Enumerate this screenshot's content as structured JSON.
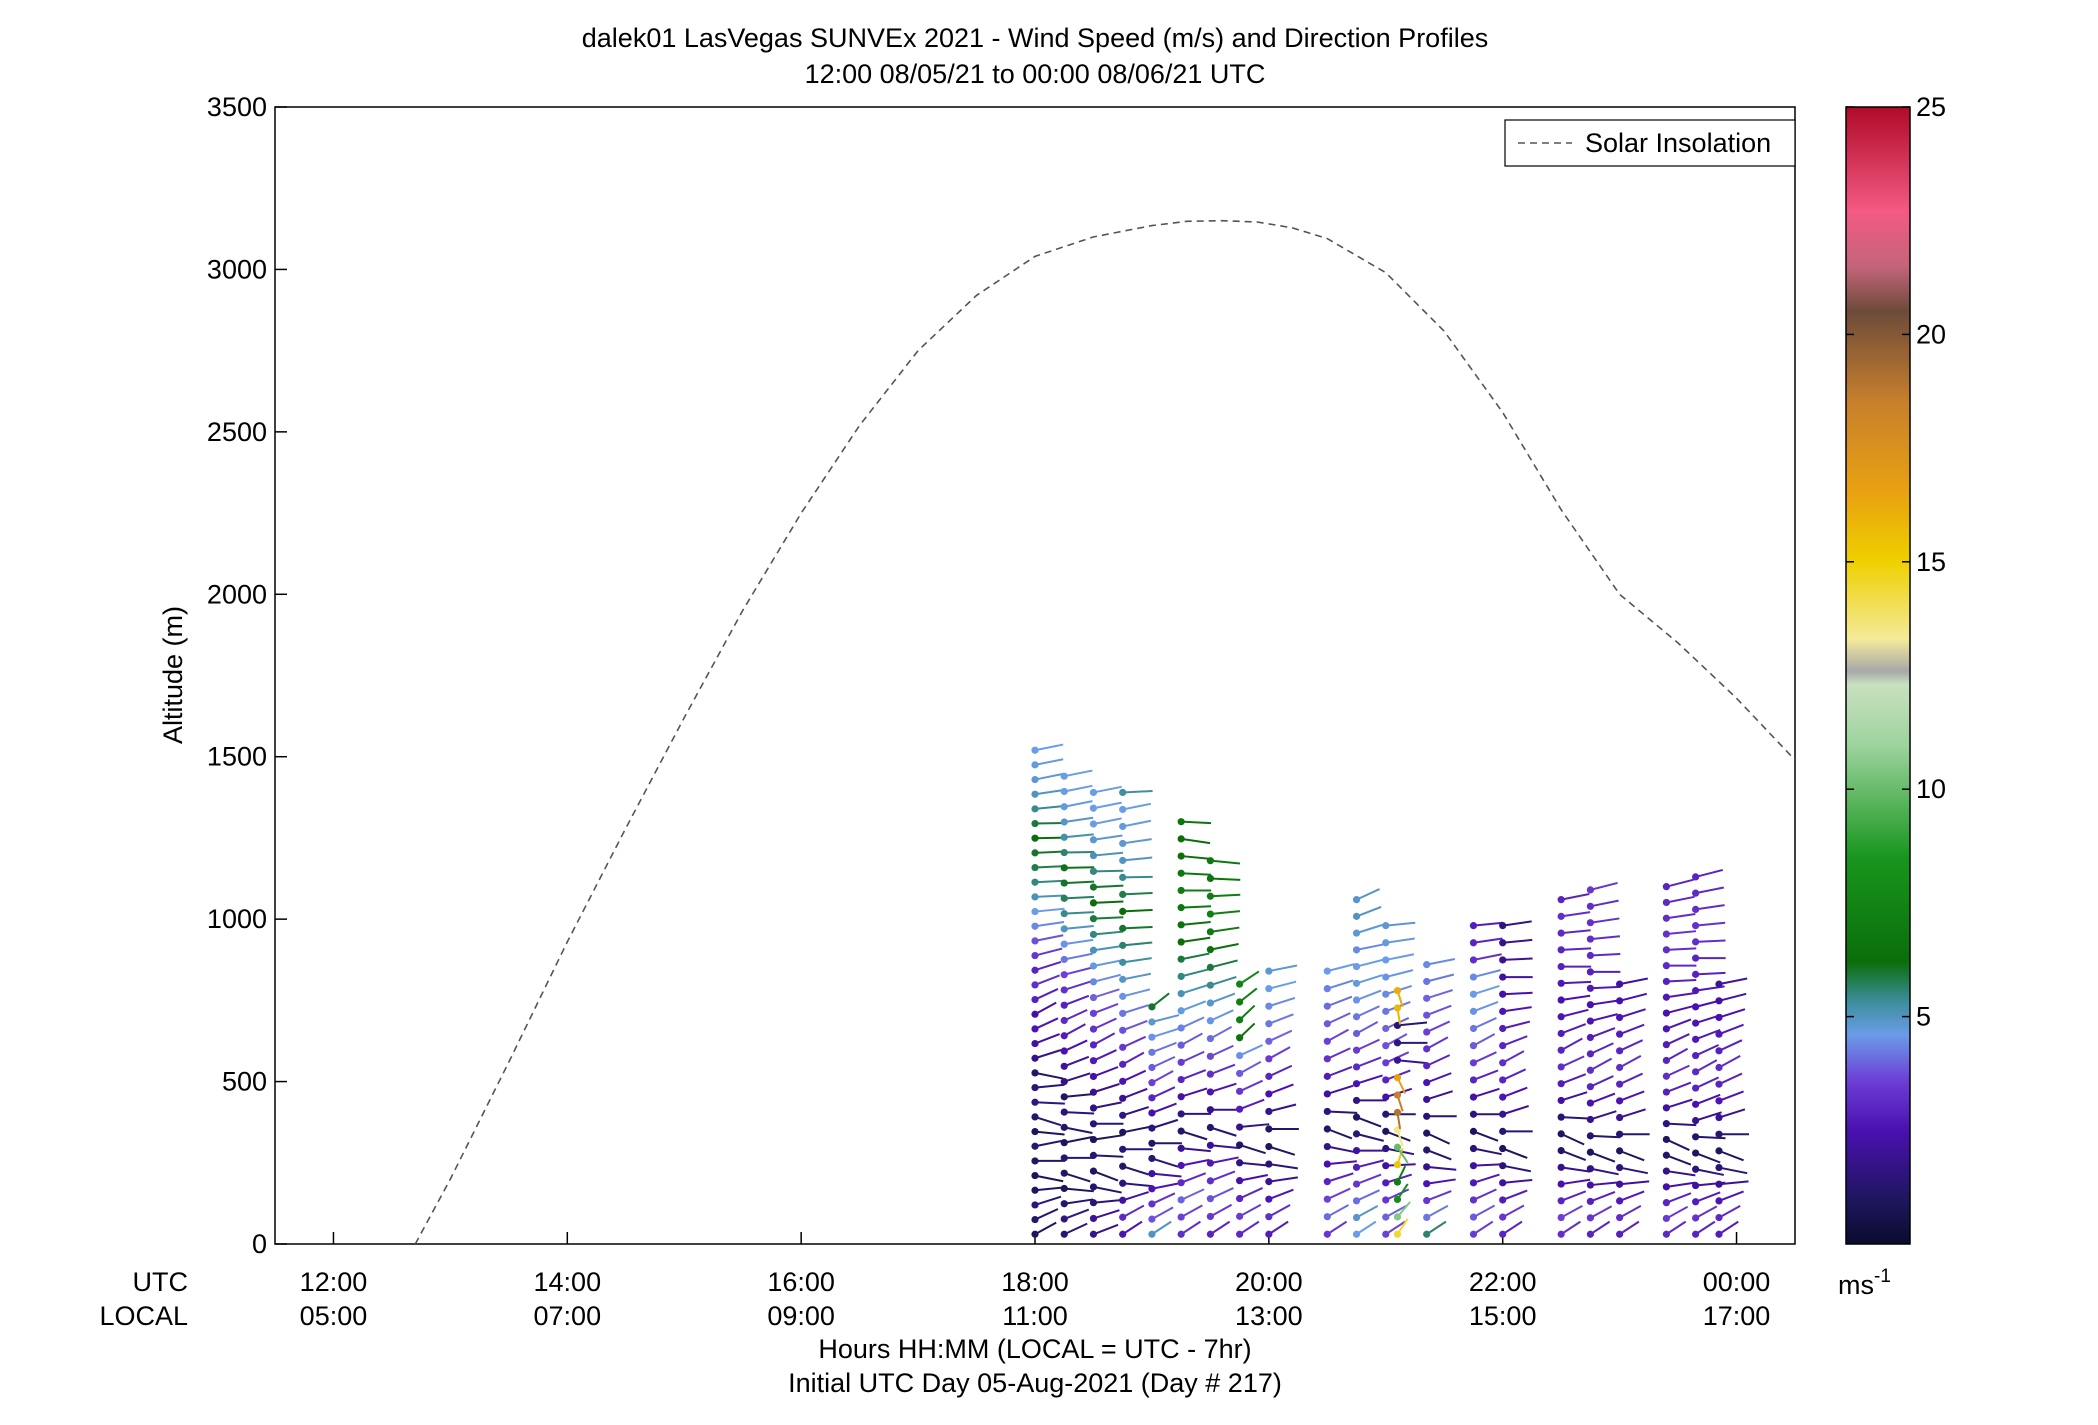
{
  "chart_data": {
    "type": "scatter",
    "title": "dalek01 LasVegas SUNVEx 2021 - Wind Speed (m/s) and Direction Profiles",
    "subtitle": "12:00 08/05/21 to 00:00 08/06/21  UTC",
    "ylabel": "Altitude (m)",
    "xlabel": "Hours HH:MM  (LOCAL = UTC - 7hr)",
    "xlabel2": "Initial UTC Day 05-Aug-2021 (Day # 217)",
    "xrow_labels": {
      "utc": "UTC",
      "local": "LOCAL"
    },
    "xlim_hours_utc": [
      11.5,
      24.5
    ],
    "ylim": [
      0,
      3500
    ],
    "yticks": [
      0,
      500,
      1000,
      1500,
      2000,
      2500,
      3000,
      3500
    ],
    "xticks": [
      {
        "hour": 12,
        "utc": "12:00",
        "local": "05:00"
      },
      {
        "hour": 14,
        "utc": "14:00",
        "local": "07:00"
      },
      {
        "hour": 16,
        "utc": "16:00",
        "local": "09:00"
      },
      {
        "hour": 18,
        "utc": "18:00",
        "local": "11:00"
      },
      {
        "hour": 20,
        "utc": "20:00",
        "local": "13:00"
      },
      {
        "hour": 22,
        "utc": "22:00",
        "local": "15:00"
      },
      {
        "hour": 24,
        "utc": "00:00",
        "local": "17:00"
      }
    ],
    "legend": {
      "label": "Solar Insolation",
      "position": "top-right",
      "color": "#555555"
    },
    "colorbar": {
      "label": "ms",
      "label_exponent": "-1",
      "range": [
        0,
        25
      ],
      "ticks": [
        5,
        10,
        15,
        20,
        25
      ],
      "colors": [
        {
          "v": 0,
          "c": "#0b0b2e"
        },
        {
          "v": 1,
          "c": "#1f1660"
        },
        {
          "v": 2.5,
          "c": "#4a10b0"
        },
        {
          "v": 3.6,
          "c": "#6c3fd6"
        },
        {
          "v": 4.6,
          "c": "#6a9ce8"
        },
        {
          "v": 5.3,
          "c": "#3e8fa0"
        },
        {
          "v": 6.2,
          "c": "#0b6e0b"
        },
        {
          "v": 8.5,
          "c": "#18961e"
        },
        {
          "v": 11,
          "c": "#9fd49f"
        },
        {
          "v": 12.3,
          "c": "#c9e0c0"
        },
        {
          "v": 12.6,
          "c": "#a8a8a8"
        },
        {
          "v": 13.3,
          "c": "#f4ea9a"
        },
        {
          "v": 15,
          "c": "#efd000"
        },
        {
          "v": 16.5,
          "c": "#e9a210"
        },
        {
          "v": 18.5,
          "c": "#c8802c"
        },
        {
          "v": 20.5,
          "c": "#6d4b3a"
        },
        {
          "v": 21.5,
          "c": "#c4647a"
        },
        {
          "v": 22.7,
          "c": "#f45a84"
        },
        {
          "v": 25,
          "c": "#b00a28"
        }
      ]
    },
    "solar_insolation_curve": {
      "x_hours_utc": [
        12.7,
        13.0,
        13.5,
        14.0,
        14.5,
        15.0,
        15.5,
        16.0,
        16.5,
        17.0,
        17.5,
        18.0,
        18.5,
        19.0,
        19.3,
        19.6,
        19.9,
        20.2,
        20.5,
        21.0,
        21.5,
        22.0,
        22.5,
        23.0,
        23.5,
        24.0,
        24.5
      ],
      "y": [
        0,
        200,
        560,
        930,
        1280,
        1620,
        1950,
        2250,
        2520,
        2750,
        2920,
        3040,
        3100,
        3135,
        3148,
        3150,
        3146,
        3128,
        3095,
        2990,
        2810,
        2560,
        2260,
        2000,
        1850,
        1680,
        1490
      ]
    },
    "profiles": [
      {
        "hour": 18.0,
        "top": 1520,
        "speeds": [
          1.0,
          1.2,
          1.5,
          1.0,
          0.8,
          1.1,
          1.3,
          0.9,
          1.2,
          1.6,
          1.4,
          1.1,
          1.8,
          2.2,
          2.6,
          2.3,
          2.9,
          3.2,
          3.0,
          3.4,
          3.8,
          4.4,
          4.6,
          5.1,
          5.5,
          5.8,
          6.0,
          6.2,
          5.9,
          5.4,
          5.0,
          4.8,
          4.7,
          4.6
        ],
        "dirs": [
          45,
          50,
          60,
          80,
          110,
          90,
          70,
          100,
          120,
          95,
          80,
          110,
          60,
          55,
          50,
          45,
          50,
          55,
          60,
          65,
          70,
          75,
          80,
          85,
          85,
          85,
          85,
          88,
          88,
          80,
          75,
          70,
          70,
          70
        ]
      },
      {
        "hour": 18.25,
        "top": 1440,
        "speeds": [
          1.4,
          1.6,
          1.2,
          0.9,
          1.1,
          1.3,
          1.0,
          1.2,
          1.5,
          1.1,
          1.7,
          2.1,
          2.5,
          2.8,
          3.1,
          2.9,
          3.3,
          3.6,
          4.2,
          4.5,
          5.0,
          5.4,
          5.7,
          6.0,
          6.1,
          5.6,
          5.2,
          4.9,
          4.7,
          4.6,
          4.6
        ],
        "dirs": [
          50,
          55,
          75,
          100,
          120,
          90,
          70,
          110,
          95,
          80,
          60,
          55,
          50,
          45,
          50,
          55,
          60,
          65,
          70,
          75,
          80,
          85,
          85,
          85,
          88,
          88,
          80,
          75,
          70,
          70,
          70
        ]
      },
      {
        "hour": 18.5,
        "top": 1390,
        "speeds": [
          1.8,
          2.0,
          1.4,
          1.2,
          1.0,
          1.3,
          0.9,
          1.4,
          1.6,
          1.9,
          2.4,
          2.7,
          3.0,
          3.3,
          3.6,
          4.0,
          4.4,
          4.7,
          5.1,
          5.5,
          5.9,
          6.2,
          6.0,
          5.5,
          5.1,
          4.8,
          4.6,
          4.6,
          4.6
        ],
        "dirs": [
          55,
          60,
          80,
          110,
          125,
          95,
          75,
          90,
          70,
          60,
          55,
          50,
          45,
          50,
          55,
          60,
          65,
          70,
          75,
          80,
          85,
          85,
          85,
          88,
          80,
          75,
          70,
          70,
          70
        ]
      },
      {
        "hour": 18.75,
        "top": 1390,
        "speeds": [
          2.6,
          3.1,
          2.2,
          1.5,
          1.1,
          1.4,
          1.0,
          1.6,
          2.0,
          2.6,
          3.0,
          3.4,
          3.8,
          4.2,
          4.5,
          4.9,
          5.3,
          5.6,
          6.0,
          6.2,
          5.8,
          5.4,
          5.0,
          4.8,
          4.7,
          4.6,
          5.3
        ],
        "dirs": [
          40,
          45,
          60,
          100,
          120,
          90,
          70,
          60,
          55,
          50,
          45,
          50,
          55,
          60,
          65,
          70,
          75,
          80,
          85,
          85,
          85,
          88,
          80,
          75,
          70,
          70,
          85
        ]
      },
      {
        "hour": 19.0,
        "top": 730,
        "speeds": [
          5.0,
          3.8,
          3.3,
          2.6,
          2.2,
          1.4,
          1.1,
          1.5,
          2.4,
          3.0,
          3.6,
          3.9,
          4.2,
          4.5,
          4.8,
          6.0
        ],
        "dirs": [
          40,
          45,
          50,
          70,
          100,
          120,
          90,
          60,
          55,
          50,
          45,
          50,
          55,
          60,
          65,
          35
        ]
      },
      {
        "hour": 19.25,
        "top": 1300,
        "speeds": [
          3.2,
          3.6,
          4.0,
          3.1,
          2.6,
          1.9,
          1.2,
          1.6,
          2.4,
          3.0,
          3.5,
          3.9,
          4.3,
          4.7,
          5.1,
          5.5,
          5.9,
          6.2,
          6.5,
          6.8,
          7.0,
          6.8,
          6.4,
          6.2,
          6.6
        ],
        "dirs": [
          40,
          45,
          50,
          55,
          70,
          100,
          120,
          90,
          60,
          55,
          50,
          45,
          50,
          55,
          60,
          65,
          70,
          75,
          80,
          85,
          90,
          95,
          100,
          105,
          95
        ]
      },
      {
        "hour": 19.5,
        "top": 1180,
        "speeds": [
          3.0,
          3.4,
          3.8,
          3.2,
          2.7,
          2.0,
          1.3,
          1.7,
          2.6,
          3.2,
          3.7,
          4.1,
          4.5,
          4.9,
          5.4,
          5.9,
          6.4,
          6.9,
          7.2,
          7.0,
          6.6,
          6.8
        ],
        "dirs": [
          40,
          45,
          50,
          55,
          70,
          100,
          120,
          90,
          60,
          55,
          50,
          45,
          50,
          55,
          60,
          65,
          70,
          75,
          80,
          85,
          95,
          100
        ]
      },
      {
        "hour": 19.75,
        "top": 800,
        "speeds": [
          3.1,
          3.5,
          3.0,
          2.4,
          1.6,
          1.1,
          1.8,
          2.8,
          3.4,
          3.9,
          4.5,
          6.5,
          7.0,
          7.2,
          7.5
        ],
        "dirs": [
          40,
          45,
          50,
          70,
          100,
          120,
          80,
          55,
          50,
          45,
          50,
          30,
          30,
          35,
          40
        ]
      },
      {
        "hour": 20.0,
        "top": 840,
        "speeds": [
          2.8,
          3.2,
          2.6,
          2.0,
          1.4,
          1.0,
          1.2,
          1.8,
          2.5,
          3.0,
          3.5,
          4.0,
          4.2,
          4.4,
          4.6,
          4.8
        ],
        "dirs": [
          40,
          45,
          55,
          75,
          105,
          120,
          90,
          65,
          55,
          50,
          45,
          50,
          55,
          60,
          65,
          70
        ]
      },
      {
        "hour": 20.5,
        "top": 840,
        "speeds": [
          3.4,
          4.1,
          3.6,
          3.0,
          2.4,
          1.7,
          1.1,
          1.5,
          2.2,
          2.8,
          3.3,
          3.6,
          3.9,
          4.1,
          4.3,
          4.6
        ],
        "dirs": [
          40,
          45,
          50,
          60,
          80,
          110,
          125,
          95,
          60,
          55,
          50,
          45,
          50,
          55,
          60,
          65
        ]
      },
      {
        "hour": 20.75,
        "top": 1060,
        "speeds": [
          4.6,
          4.9,
          4.1,
          3.4,
          2.8,
          2.1,
          1.4,
          1.0,
          1.6,
          2.5,
          3.1,
          3.5,
          3.9,
          4.2,
          4.5,
          4.7,
          4.6,
          4.4,
          4.8,
          5.0,
          4.9
        ],
        "dirs": [
          40,
          45,
          50,
          55,
          65,
          90,
          115,
          125,
          90,
          60,
          55,
          50,
          45,
          50,
          55,
          60,
          65,
          70,
          60,
          55,
          50
        ]
      },
      {
        "hour": 21.0,
        "top": 980,
        "speeds": [
          3.6,
          4.0,
          3.4,
          2.8,
          2.2,
          1.5,
          1.0,
          1.4,
          2.4,
          3.0,
          3.5,
          3.8,
          4.0,
          4.2,
          4.4,
          4.5,
          4.6,
          4.7,
          4.8
        ],
        "dirs": [
          40,
          45,
          50,
          60,
          85,
          110,
          125,
          90,
          60,
          55,
          50,
          45,
          50,
          55,
          60,
          65,
          70,
          75,
          80
        ]
      },
      {
        "hour": 21.1,
        "top": 780,
        "speeds": [
          14.5,
          10.5,
          8.0,
          7.2,
          15.2,
          10.0,
          13.5,
          19.0,
          18.5,
          16.5,
          2.0,
          1.6,
          1.4,
          15.8,
          16.2
        ],
        "dirs": [
          20,
          25,
          20,
          15,
          10,
          160,
          170,
          175,
          170,
          165,
          100,
          90,
          80,
          175,
          170
        ]
      },
      {
        "hour": 21.35,
        "top": 860,
        "speeds": [
          5.6,
          4.2,
          3.4,
          2.6,
          1.8,
          1.2,
          1.0,
          1.4,
          2.0,
          2.6,
          3.0,
          3.3,
          3.6,
          3.8,
          4.0,
          4.2,
          4.4
        ],
        "dirs": [
          40,
          45,
          55,
          75,
          100,
          125,
          130,
          90,
          60,
          55,
          50,
          45,
          50,
          55,
          60,
          65,
          70
        ]
      },
      {
        "hour": 21.75,
        "top": 980,
        "speeds": [
          3.5,
          3.9,
          3.3,
          2.7,
          2.1,
          1.4,
          1.0,
          1.5,
          2.4,
          3.0,
          3.5,
          3.9,
          4.2,
          4.5,
          4.6,
          4.4,
          3.2,
          3.0,
          2.8
        ],
        "dirs": [
          40,
          45,
          50,
          60,
          85,
          110,
          125,
          90,
          60,
          55,
          50,
          45,
          50,
          55,
          60,
          65,
          70,
          75,
          80
        ]
      },
      {
        "hour": 22.0,
        "top": 980,
        "speeds": [
          3.0,
          3.4,
          2.8,
          2.2,
          1.5,
          1.0,
          1.3,
          2.0,
          2.6,
          3.0,
          3.2,
          3.0,
          2.8,
          2.6,
          2.4,
          2.2,
          2.0,
          1.8,
          1.6
        ],
        "dirs": [
          40,
          45,
          55,
          80,
          110,
          125,
          90,
          60,
          55,
          50,
          45,
          55,
          65,
          75,
          85,
          90,
          85,
          80,
          75
        ]
      },
      {
        "hour": 22.5,
        "top": 1060,
        "speeds": [
          3.2,
          3.6,
          3.0,
          2.5,
          1.8,
          1.1,
          1.0,
          1.4,
          2.2,
          2.8,
          3.2,
          3.0,
          2.8,
          2.6,
          2.5,
          2.7,
          2.9,
          3.0,
          3.1,
          3.2,
          3.0
        ],
        "dirs": [
          40,
          45,
          55,
          75,
          105,
          125,
          130,
          95,
          60,
          55,
          50,
          45,
          55,
          65,
          75,
          85,
          90,
          85,
          80,
          75,
          70
        ]
      },
      {
        "hour": 22.75,
        "top": 1090,
        "speeds": [
          3.0,
          3.4,
          2.9,
          2.3,
          1.6,
          1.0,
          1.2,
          1.8,
          2.5,
          3.0,
          3.2,
          3.0,
          2.8,
          2.6,
          2.5,
          2.7,
          2.9,
          3.1,
          3.2,
          3.3,
          3.2,
          3.4
        ],
        "dirs": [
          40,
          45,
          55,
          80,
          110,
          125,
          95,
          60,
          55,
          50,
          45,
          50,
          55,
          65,
          75,
          85,
          90,
          85,
          80,
          75,
          70,
          65
        ]
      },
      {
        "hour": 23.0,
        "top": 800,
        "speeds": [
          2.9,
          3.2,
          2.7,
          2.1,
          1.5,
          1.0,
          1.3,
          2.0,
          2.6,
          3.0,
          3.2,
          3.0,
          2.8,
          2.6,
          2.4,
          2.2
        ],
        "dirs": [
          40,
          45,
          55,
          80,
          110,
          125,
          90,
          60,
          55,
          50,
          45,
          50,
          55,
          60,
          65,
          70
        ]
      },
      {
        "hour": 23.4,
        "top": 1100,
        "speeds": [
          3.1,
          3.5,
          3.0,
          2.4,
          1.7,
          1.1,
          1.0,
          1.5,
          2.3,
          2.9,
          3.2,
          3.0,
          2.8,
          2.6,
          2.5,
          2.7,
          2.9,
          3.1,
          3.2,
          3.3,
          3.2,
          3.1,
          3.0
        ],
        "dirs": [
          40,
          45,
          55,
          75,
          105,
          125,
          130,
          95,
          60,
          55,
          50,
          45,
          50,
          55,
          65,
          75,
          85,
          90,
          85,
          80,
          75,
          70,
          65
        ]
      },
      {
        "hour": 23.65,
        "top": 1130,
        "speeds": [
          3.0,
          3.3,
          2.8,
          2.2,
          1.5,
          1.0,
          1.2,
          1.8,
          2.5,
          3.0,
          3.1,
          2.9,
          2.7,
          2.6,
          2.5,
          2.7,
          2.9,
          3.0,
          3.2,
          3.3,
          3.2,
          3.1,
          3.0
        ],
        "dirs": [
          40,
          45,
          55,
          80,
          110,
          125,
          95,
          60,
          55,
          50,
          45,
          50,
          55,
          60,
          65,
          75,
          85,
          90,
          85,
          80,
          75,
          70,
          65
        ]
      },
      {
        "hour": 23.85,
        "top": 800,
        "speeds": [
          2.8,
          3.1,
          2.6,
          2.0,
          1.4,
          1.0,
          1.3,
          2.0,
          2.6,
          3.0,
          3.1,
          2.9,
          2.7,
          2.5,
          2.3,
          2.1
        ],
        "dirs": [
          40,
          45,
          55,
          80,
          110,
          125,
          90,
          60,
          55,
          50,
          45,
          50,
          55,
          60,
          65,
          70
        ]
      }
    ]
  }
}
